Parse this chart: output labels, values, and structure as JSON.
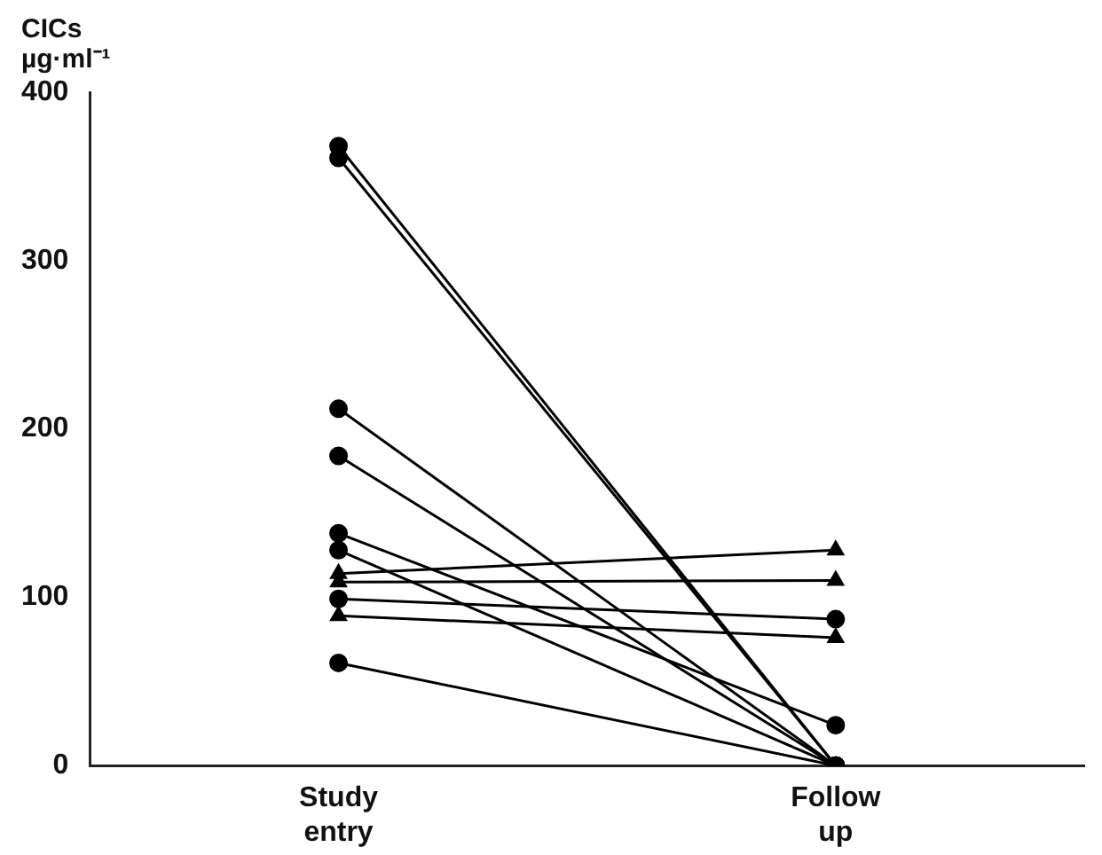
{
  "chart_data": {
    "type": "line",
    "ylabel": "CICs\nµg·ml⁻¹",
    "categories": [
      "Study\nentry",
      "Follow\nup"
    ],
    "ylim": [
      0,
      400
    ],
    "yticks": [
      0,
      100,
      200,
      300,
      400
    ],
    "grid": false,
    "legend": false,
    "line_style": "solid",
    "series": [
      {
        "color": "#000000",
        "marker": "circle",
        "values": [
          368,
          0
        ]
      },
      {
        "color": "#000000",
        "marker": "circle",
        "values": [
          361,
          0
        ]
      },
      {
        "color": "#000000",
        "marker": "circle",
        "values": [
          212,
          0
        ]
      },
      {
        "color": "#000000",
        "marker": "circle",
        "values": [
          184,
          0
        ]
      },
      {
        "color": "#000000",
        "marker": "circle",
        "values": [
          138,
          24
        ]
      },
      {
        "color": "#000000",
        "marker": "circle",
        "values": [
          128,
          0
        ]
      },
      {
        "color": "#000000",
        "marker": "triangle",
        "values": [
          114,
          128
        ]
      },
      {
        "color": "#000000",
        "marker": "triangle",
        "values": [
          109,
          110
        ]
      },
      {
        "color": "#000000",
        "marker": "circle",
        "values": [
          99,
          87
        ]
      },
      {
        "color": "#000000",
        "marker": "triangle",
        "values": [
          89,
          76
        ]
      },
      {
        "color": "#000000",
        "marker": "circle",
        "values": [
          61,
          0
        ]
      }
    ]
  }
}
